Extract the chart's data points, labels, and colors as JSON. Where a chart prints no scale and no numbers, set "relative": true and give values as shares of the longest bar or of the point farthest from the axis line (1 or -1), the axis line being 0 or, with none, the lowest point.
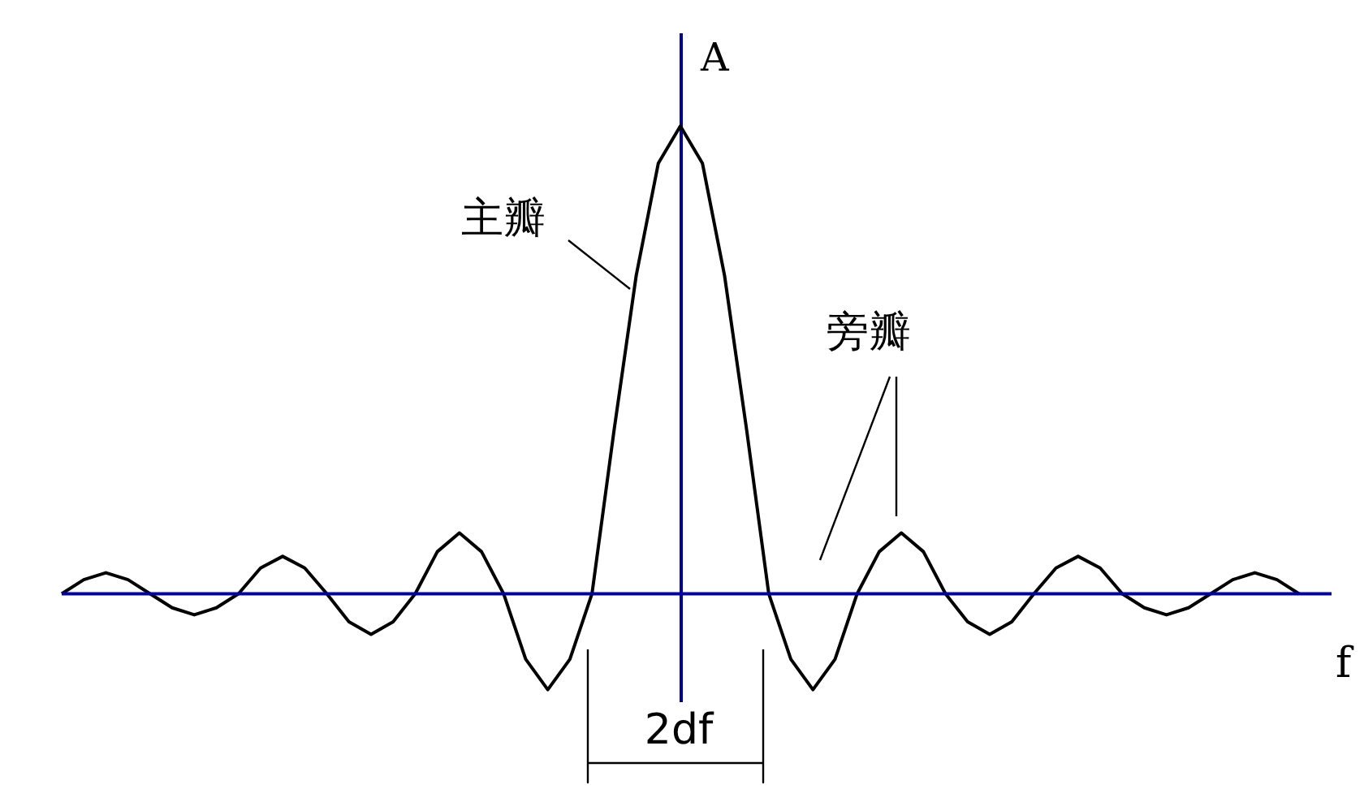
{
  "chart_data": {
    "type": "line",
    "relative": true,
    "xlabel": "f",
    "ylabel": "A",
    "categories": [
      null,
      null,
      null,
      null,
      null,
      null,
      null,
      null,
      null,
      null,
      null,
      null,
      null,
      null,
      null,
      null,
      null,
      null,
      null,
      null,
      null,
      null,
      null,
      null,
      null,
      null,
      null,
      null,
      null,
      null,
      null,
      null,
      null,
      null,
      null,
      null,
      null,
      null,
      null,
      null,
      null,
      null,
      null,
      null,
      null,
      null,
      null,
      null,
      null,
      null,
      null,
      null,
      null,
      null,
      null,
      null,
      null
    ],
    "series": [
      {
        "color": "#000000",
        "values": [
          0,
          0.03,
          0.045,
          0.03,
          0,
          -0.03,
          -0.045,
          -0.03,
          0,
          0.055,
          0.08,
          0.055,
          0,
          -0.06,
          -0.087,
          -0.06,
          0,
          0.09,
          0.13,
          0.09,
          0,
          -0.14,
          -0.205,
          -0.14,
          0,
          0.35,
          0.68,
          0.92,
          1,
          0.92,
          0.68,
          0.35,
          0,
          -0.14,
          -0.205,
          -0.14,
          0,
          0.09,
          0.13,
          0.09,
          0,
          -0.06,
          -0.087,
          -0.06,
          0,
          0.055,
          0.08,
          0.055,
          0,
          -0.03,
          -0.045,
          -0.03,
          0,
          0.03,
          0.045,
          0.03,
          0
        ]
      }
    ],
    "annotations": [
      "主瓣",
      "旁瓣",
      "2df"
    ],
    "ref_lines": [
      {
        "axis": "y",
        "value": 0,
        "color": "#0000aa"
      }
    ],
    "grid": false,
    "marker": "none",
    "line_style": "solid"
  }
}
